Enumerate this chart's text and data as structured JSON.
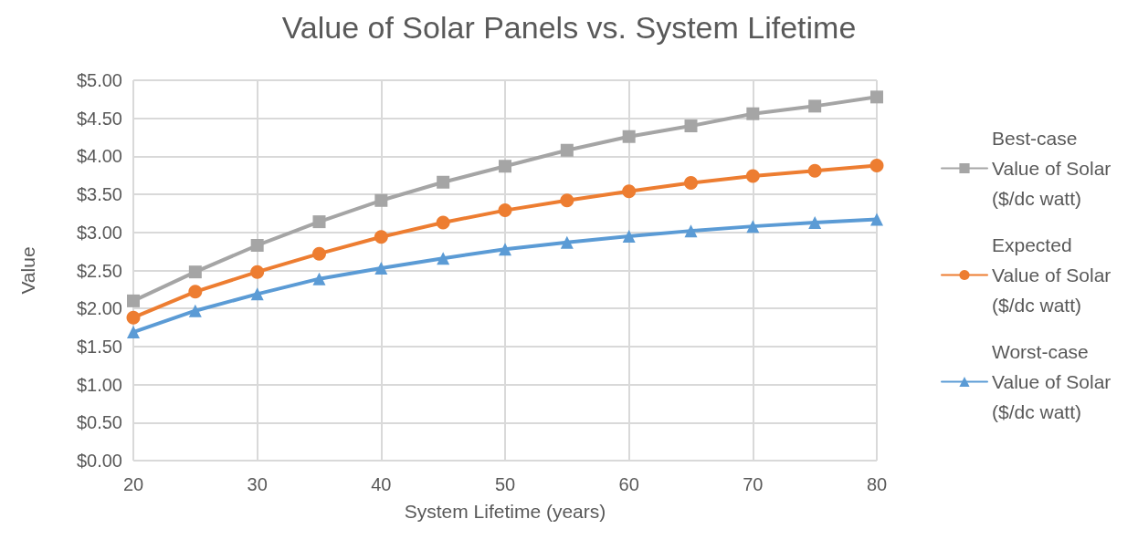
{
  "chart_data": {
    "type": "line",
    "title": "Value of Solar Panels vs. System Lifetime",
    "xlabel": "System Lifetime (years)",
    "ylabel": "Value",
    "x": [
      20,
      25,
      30,
      35,
      40,
      45,
      50,
      55,
      60,
      65,
      70,
      75,
      80
    ],
    "series": [
      {
        "name": "Best-case Value of Solar ($/dc watt)",
        "color": "#a5a5a5",
        "marker": "square",
        "values": [
          2.1,
          2.48,
          2.83,
          3.14,
          3.42,
          3.66,
          3.87,
          4.08,
          4.26,
          4.4,
          4.56,
          4.66,
          4.78
        ]
      },
      {
        "name": "Expected Value of Solar ($/dc watt)",
        "color": "#ed7d31",
        "marker": "circle",
        "values": [
          1.88,
          2.22,
          2.48,
          2.72,
          2.94,
          3.13,
          3.29,
          3.42,
          3.54,
          3.65,
          3.74,
          3.81,
          3.88
        ]
      },
      {
        "name": "Worst-case Value of Solar ($/dc watt)",
        "color": "#5b9bd5",
        "marker": "triangle",
        "values": [
          1.69,
          1.97,
          2.19,
          2.39,
          2.53,
          2.66,
          2.78,
          2.87,
          2.95,
          3.02,
          3.08,
          3.13,
          3.17
        ]
      }
    ],
    "xlim": [
      20,
      80
    ],
    "xticks": [
      20,
      30,
      40,
      50,
      60,
      70,
      80
    ],
    "ylim": [
      0,
      5
    ],
    "yticks": [
      {
        "value": 0,
        "label": "$0.00"
      },
      {
        "value": 0.5,
        "label": "$0.50"
      },
      {
        "value": 1,
        "label": "$1.00"
      },
      {
        "value": 1.5,
        "label": "$1.50"
      },
      {
        "value": 2,
        "label": "$2.00"
      },
      {
        "value": 2.5,
        "label": "$2.50"
      },
      {
        "value": 3,
        "label": "$3.00"
      },
      {
        "value": 3.5,
        "label": "$3.50"
      },
      {
        "value": 4,
        "label": "$4.00"
      },
      {
        "value": 4.5,
        "label": "$4.50"
      },
      {
        "value": 5,
        "label": "$5.00"
      }
    ],
    "grid": true,
    "legend": "right",
    "line_style": "solid"
  }
}
